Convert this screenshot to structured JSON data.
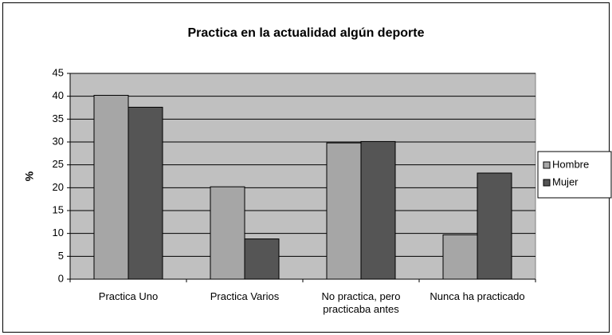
{
  "chart_data": {
    "type": "bar",
    "title": "Practica en la actualidad algún deporte",
    "ylabel": "%",
    "categories": [
      "Practica Uno",
      "Practica Varios",
      "No practica, pero practicaba antes",
      "Nunca ha practicado"
    ],
    "series": [
      {
        "name": "Hombre",
        "color": "#a6a6a6",
        "values": [
          40.2,
          20.2,
          29.8,
          9.7
        ]
      },
      {
        "name": "Mujer",
        "color": "#555555",
        "values": [
          37.6,
          8.8,
          30.1,
          23.2
        ]
      }
    ],
    "ylim": [
      0,
      45
    ],
    "yticks": [
      0,
      5,
      10,
      15,
      20,
      25,
      30,
      35,
      40,
      45
    ],
    "grid": true,
    "legend": "right"
  }
}
